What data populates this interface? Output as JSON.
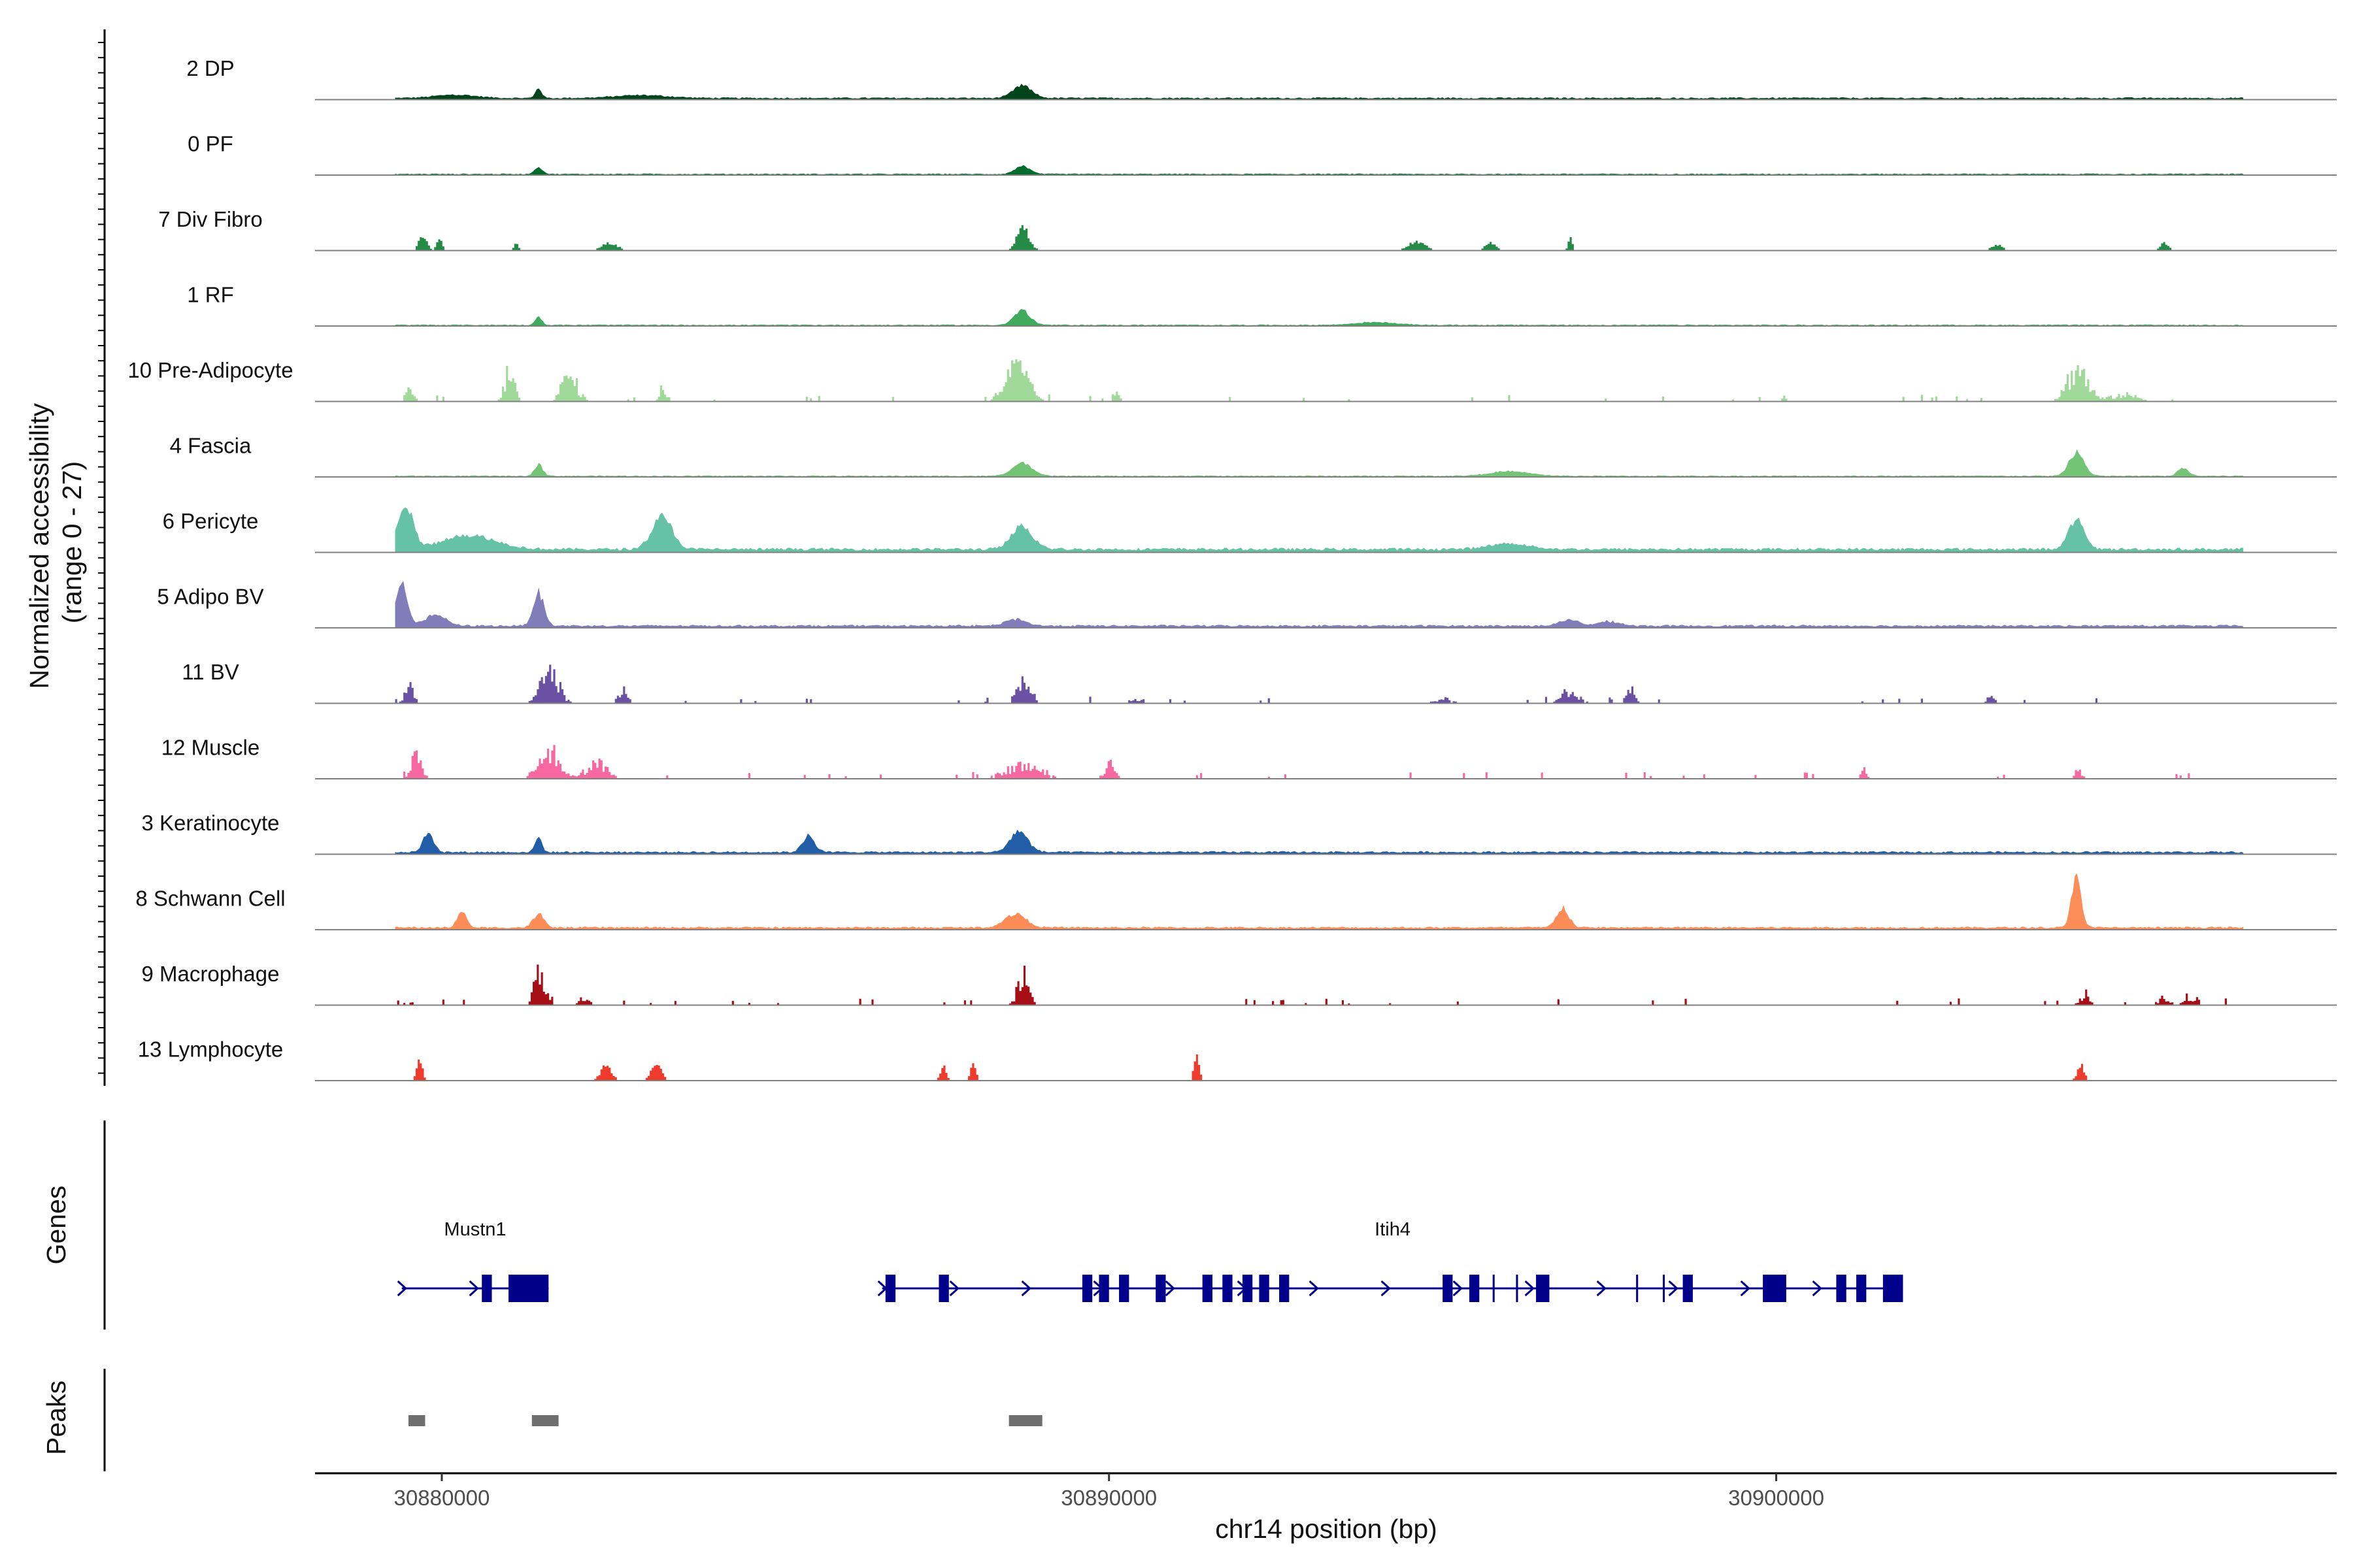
{
  "chart_data": {
    "type": "genome-coverage",
    "y_axis_title": [
      "Normalized accessibility",
      "(range 0 - 27)"
    ],
    "y_range": [
      0,
      27
    ],
    "x_axis_title": "chr14 position (bp)",
    "x_range": [
      30878100,
      30908400
    ],
    "x_ticks": [
      {
        "value": 30880000,
        "label": "30880000"
      },
      {
        "value": 30890000,
        "label": "30890000"
      },
      {
        "value": 30900000,
        "label": "30900000"
      }
    ],
    "tracks": [
      {
        "name": "2 DP",
        "color": "#00441b",
        "kind": "smooth",
        "base": 0.03,
        "peaks": [
          [
            30881450,
            0.18,
            45
          ],
          [
            30888700,
            0.22,
            140
          ],
          [
            30880200,
            0.06,
            300
          ],
          [
            30883000,
            0.05,
            400
          ]
        ]
      },
      {
        "name": "0 PF",
        "color": "#006d2c",
        "kind": "smooth",
        "base": 0.02,
        "peaks": [
          [
            30881450,
            0.12,
            60
          ],
          [
            30888700,
            0.14,
            110
          ]
        ]
      },
      {
        "name": "7 Div Fibro",
        "color": "#238b45",
        "kind": "blocky",
        "base": 0.0,
        "peaks": [
          [
            30879700,
            0.28,
            60
          ],
          [
            30879950,
            0.22,
            40
          ],
          [
            30881100,
            0.12,
            40
          ],
          [
            30882500,
            0.14,
            120
          ],
          [
            30888700,
            0.45,
            90
          ],
          [
            30894600,
            0.18,
            120
          ],
          [
            30895700,
            0.14,
            80
          ],
          [
            30896900,
            0.22,
            30
          ],
          [
            30903300,
            0.12,
            80
          ],
          [
            30905800,
            0.16,
            60
          ]
        ]
      },
      {
        "name": "1 RF",
        "color": "#41ab5d",
        "kind": "smooth",
        "base": 0.02,
        "peaks": [
          [
            30881450,
            0.14,
            50
          ],
          [
            30888700,
            0.26,
            120
          ],
          [
            30894000,
            0.05,
            300
          ]
        ]
      },
      {
        "name": "10 Pre-Adipocyte",
        "color": "#a1d99b",
        "kind": "spiky",
        "base": 0.0,
        "peaks": [
          [
            30879500,
            0.3,
            60
          ],
          [
            30881000,
            0.7,
            70
          ],
          [
            30881900,
            0.55,
            120
          ],
          [
            30883300,
            0.3,
            60
          ],
          [
            30888600,
            0.75,
            170
          ],
          [
            30890100,
            0.18,
            40
          ],
          [
            30900100,
            0.18,
            30
          ],
          [
            30904500,
            0.75,
            150
          ],
          [
            30905200,
            0.15,
            200
          ]
        ]
      },
      {
        "name": "4 Fascia",
        "color": "#74c476",
        "kind": "smooth",
        "base": 0.02,
        "peaks": [
          [
            30881450,
            0.22,
            60
          ],
          [
            30888700,
            0.22,
            150
          ],
          [
            30896000,
            0.08,
            300
          ],
          [
            30904500,
            0.42,
            110
          ],
          [
            30906100,
            0.15,
            80
          ]
        ]
      },
      {
        "name": "6 Pericyte",
        "color": "#66c2a4",
        "kind": "smooth",
        "base": 0.06,
        "peaks": [
          [
            30879450,
            0.82,
            110
          ],
          [
            30880400,
            0.25,
            400
          ],
          [
            30883300,
            0.6,
            150
          ],
          [
            30888700,
            0.4,
            160
          ],
          [
            30896000,
            0.1,
            300
          ],
          [
            30904500,
            0.5,
            120
          ]
        ]
      },
      {
        "name": "5 Adipo BV",
        "color": "#807dba",
        "kind": "smooth",
        "base": 0.04,
        "peaks": [
          [
            30879400,
            0.82,
            80
          ],
          [
            30879900,
            0.2,
            150
          ],
          [
            30881450,
            0.6,
            80
          ],
          [
            30888600,
            0.12,
            150
          ],
          [
            30896900,
            0.1,
            150
          ],
          [
            30897500,
            0.08,
            150
          ]
        ]
      },
      {
        "name": "11 BV",
        "color": "#6a51a3",
        "kind": "spiky",
        "base": 0.0,
        "peaks": [
          [
            30879500,
            0.4,
            60
          ],
          [
            30881600,
            0.6,
            140
          ],
          [
            30882700,
            0.35,
            60
          ],
          [
            30888700,
            0.65,
            90
          ],
          [
            30890400,
            0.1,
            120
          ],
          [
            30895000,
            0.1,
            120
          ],
          [
            30896900,
            0.3,
            120
          ],
          [
            30897800,
            0.3,
            60
          ],
          [
            30903200,
            0.15,
            60
          ]
        ]
      },
      {
        "name": "12 Muscle",
        "color": "#f768a1",
        "kind": "spiky",
        "base": 0.0,
        "peaks": [
          [
            30879600,
            0.45,
            80
          ],
          [
            30881600,
            0.6,
            150
          ],
          [
            30882300,
            0.35,
            150
          ],
          [
            30888700,
            0.3,
            250
          ],
          [
            30890000,
            0.3,
            80
          ],
          [
            30901300,
            0.2,
            40
          ],
          [
            30904500,
            0.32,
            40
          ]
        ]
      },
      {
        "name": "3 Keratinocyte",
        "color": "#225ea8",
        "kind": "smooth",
        "base": 0.04,
        "peaks": [
          [
            30879800,
            0.35,
            80
          ],
          [
            30881450,
            0.25,
            50
          ],
          [
            30885500,
            0.3,
            90
          ],
          [
            30888650,
            0.38,
            130
          ]
        ]
      },
      {
        "name": "8 Schwann Cell",
        "color": "#fc8d59",
        "kind": "smooth",
        "base": 0.04,
        "peaks": [
          [
            30880300,
            0.28,
            70
          ],
          [
            30881450,
            0.25,
            80
          ],
          [
            30888600,
            0.25,
            160
          ],
          [
            30896800,
            0.36,
            90
          ],
          [
            30904500,
            0.98,
            70
          ]
        ]
      },
      {
        "name": "9 Macrophage",
        "color": "#a50f15",
        "kind": "spiky",
        "base": 0.0,
        "peaks": [
          [
            30881450,
            0.68,
            80
          ],
          [
            30882100,
            0.18,
            80
          ],
          [
            30888700,
            0.7,
            80
          ],
          [
            30904600,
            0.2,
            80
          ],
          [
            30905800,
            0.2,
            70
          ],
          [
            30906200,
            0.15,
            100
          ]
        ]
      },
      {
        "name": "13 Lymphocyte",
        "color": "#ef3b2c",
        "kind": "blocky",
        "base": 0.0,
        "peaks": [
          [
            30879650,
            0.48,
            40
          ],
          [
            30882450,
            0.3,
            80
          ],
          [
            30883200,
            0.3,
            80
          ],
          [
            30887500,
            0.3,
            40
          ],
          [
            30887950,
            0.3,
            40
          ],
          [
            30891300,
            0.48,
            40
          ],
          [
            30904550,
            0.3,
            50
          ]
        ]
      }
    ],
    "genes_panel_title": "Genes",
    "genes": [
      {
        "name": "Mustn1",
        "color": "#00008b",
        "start": 30879400,
        "end": 30881600,
        "exons": [
          [
            30880600,
            30880750
          ],
          [
            30881000,
            30881600
          ]
        ]
      },
      {
        "name": "Itih4",
        "color": "#00008b",
        "start": 30886600,
        "end": 30901900,
        "exons": [
          [
            30886650,
            30886800
          ],
          [
            30887450,
            30887600
          ],
          [
            30889600,
            30889750
          ],
          [
            30889850,
            30890000
          ],
          [
            30890150,
            30890300
          ],
          [
            30890700,
            30890850
          ],
          [
            30891400,
            30891550
          ],
          [
            30891700,
            30891850
          ],
          [
            30892000,
            30892150
          ],
          [
            30892250,
            30892400
          ],
          [
            30892550,
            30892700
          ],
          [
            30895000,
            30895150
          ],
          [
            30895400,
            30895550
          ],
          [
            30895750,
            30895780
          ],
          [
            30896100,
            30896130
          ],
          [
            30896400,
            30896600
          ],
          [
            30897900,
            30897930
          ],
          [
            30898300,
            30898330
          ],
          [
            30898600,
            30898750
          ],
          [
            30899800,
            30900150
          ],
          [
            30900900,
            30901050
          ],
          [
            30901200,
            30901350
          ],
          [
            30901600,
            30901900
          ]
        ]
      }
    ],
    "peaks_panel_title": "Peaks",
    "peak_regions": [
      [
        30879500,
        30879750
      ],
      [
        30881350,
        30881750
      ],
      [
        30888500,
        30889000
      ]
    ]
  }
}
